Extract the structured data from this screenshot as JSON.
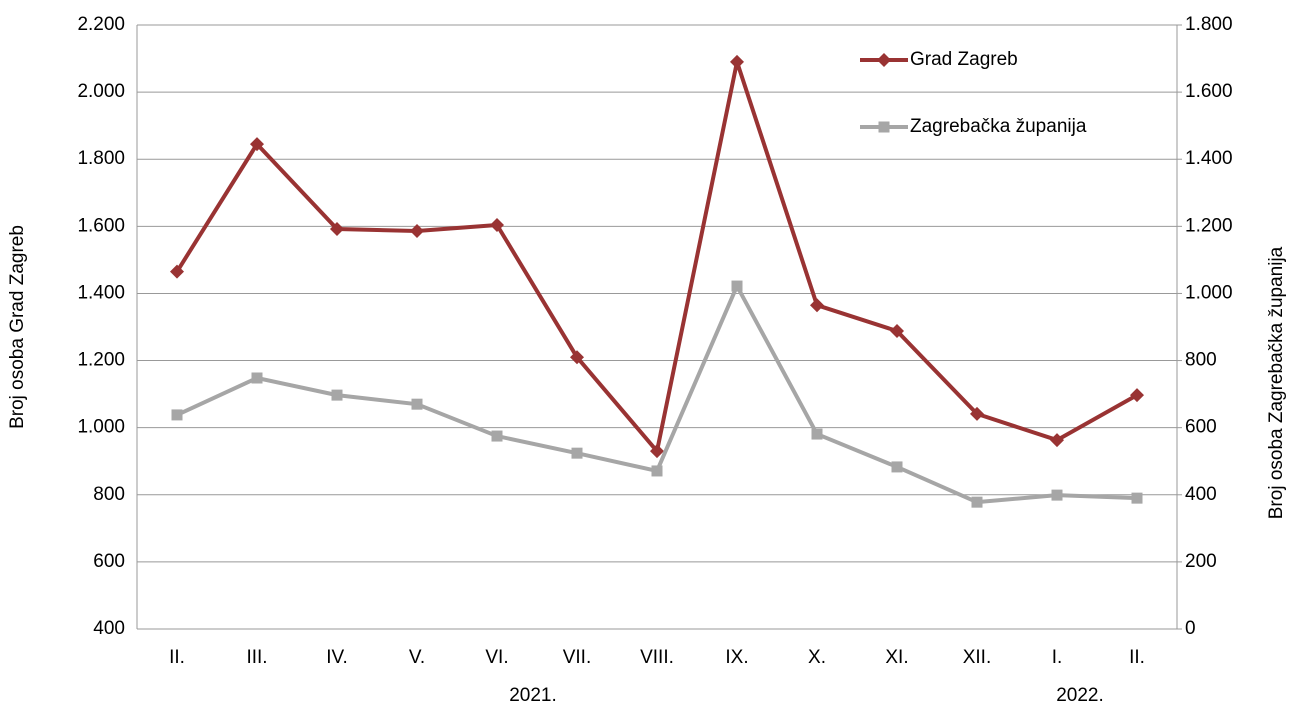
{
  "chart_data": {
    "type": "line",
    "categories": [
      "II.",
      "III.",
      "IV.",
      "V.",
      "VI.",
      "VII.",
      "VIII.",
      "IX.",
      "X.",
      "XI.",
      "XII.",
      "I.",
      "II."
    ],
    "annotations": [
      "2021.",
      "2022."
    ],
    "ylabel": "Broj osoba Grad Zagreb",
    "y2label": "Broj osoba Zagrebačka županija",
    "ylim": [
      400,
      2200
    ],
    "yticks": [
      400,
      600,
      800,
      {
        "value": 1000,
        "label": "1.000"
      },
      {
        "value": 1200,
        "label": "1.200"
      },
      {
        "value": 1400,
        "label": "1.400"
      },
      {
        "value": 1600,
        "label": "1.600"
      },
      {
        "value": 1800,
        "label": "1.800"
      },
      {
        "value": 2000,
        "label": "2.000"
      },
      {
        "value": 2200,
        "label": "2.200"
      }
    ],
    "y2lim": [
      0,
      1800
    ],
    "y2ticks": [
      0,
      200,
      400,
      600,
      800,
      {
        "value": 1000,
        "label": "1.000"
      },
      {
        "value": 1200,
        "label": "1.200"
      },
      {
        "value": 1400,
        "label": "1.400"
      },
      {
        "value": 1600,
        "label": "1.600"
      },
      {
        "value": 1800,
        "label": "1.800"
      }
    ],
    "grid": true,
    "legend": "upper right",
    "series": [
      {
        "name": "Grad Zagreb",
        "color": "#993333",
        "marker": "diamond",
        "values": [
          1465,
          1845,
          1592,
          1586,
          1604,
          1210,
          930,
          2090,
          1365,
          1288,
          1041,
          963,
          1097
        ]
      },
      {
        "name": "Zagrebačka županija",
        "color": "#a6a6a6",
        "marker": "square",
        "axis": "y2",
        "values": [
          638,
          748,
          697,
          670,
          575,
          524,
          471,
          1022,
          581,
          483,
          378,
          399,
          390
        ]
      }
    ]
  }
}
